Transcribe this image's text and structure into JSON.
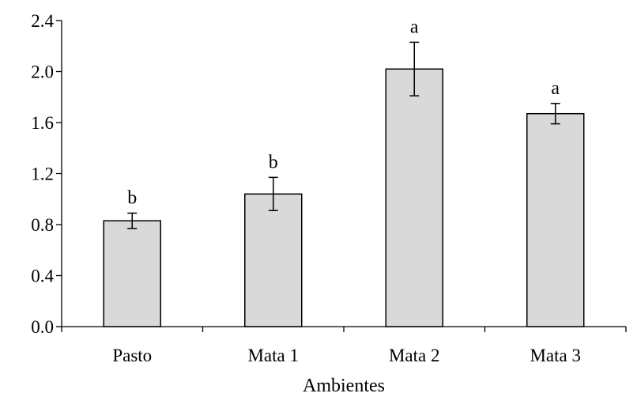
{
  "chart_data": {
    "type": "bar",
    "title": "",
    "xlabel": "Ambientes",
    "ylabel": "",
    "categories": [
      "Pasto",
      "Mata 1",
      "Mata 2",
      "Mata 3"
    ],
    "values": [
      0.83,
      1.04,
      2.02,
      1.67
    ],
    "errors": [
      0.06,
      0.13,
      0.21,
      0.08
    ],
    "significance": [
      "b",
      "b",
      "a",
      "a"
    ],
    "ylim": [
      0,
      2.4
    ],
    "yticks": [
      "0.0",
      "0.4",
      "0.8",
      "1.2",
      "1.6",
      "2.0",
      "2.4"
    ],
    "grid": false,
    "colors": {
      "bar_fill": "#d9d9d9",
      "bar_stroke": "#000000",
      "axis": "#000000"
    }
  }
}
